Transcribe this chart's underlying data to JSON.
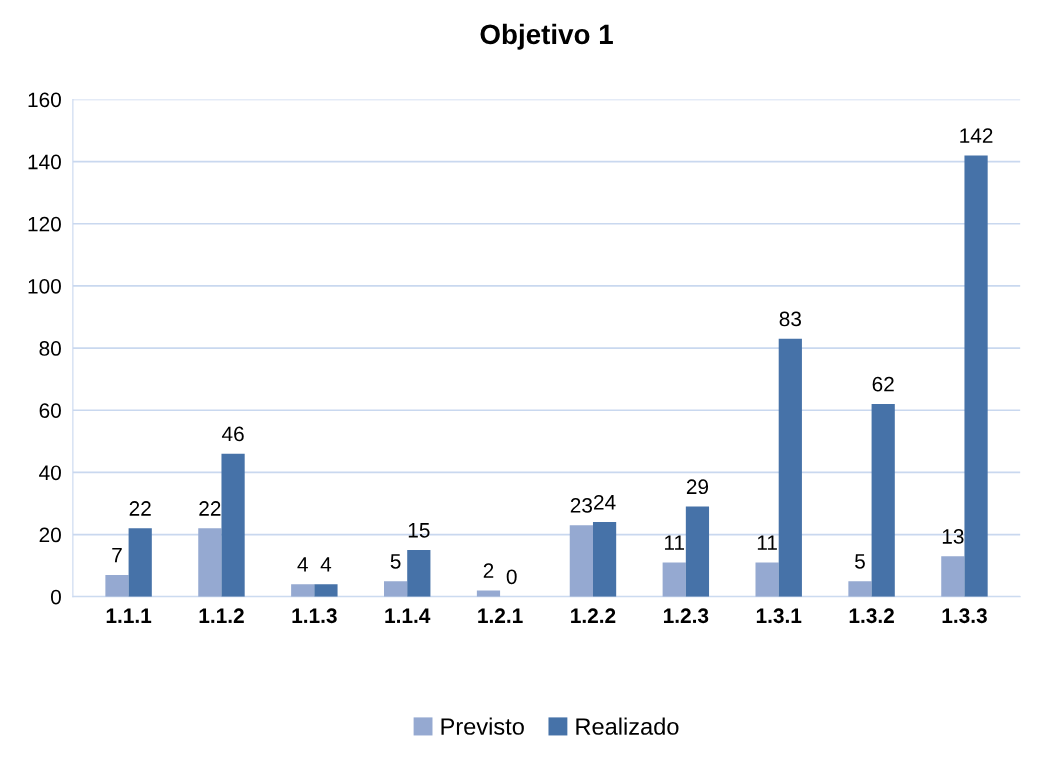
{
  "chart_data": {
    "type": "bar",
    "title": "Objetivo 1",
    "categories": [
      "1.1.1",
      "1.1.2",
      "1.1.3",
      "1.1.4",
      "1.2.1",
      "1.2.2",
      "1.2.3",
      "1.3.1",
      "1.3.2",
      "1.3.3"
    ],
    "series": [
      {
        "name": "Previsto",
        "color": "#95a9d1",
        "values": [
          7,
          22,
          4,
          5,
          2,
          23,
          11,
          11,
          5,
          13
        ]
      },
      {
        "name": "Realizado",
        "color": "#4672a8",
        "values": [
          22,
          46,
          4,
          15,
          0,
          24,
          29,
          83,
          62,
          142
        ]
      }
    ],
    "ylim": [
      0,
      160
    ],
    "yticks": [
      0,
      20,
      40,
      60,
      80,
      100,
      120,
      140,
      160
    ],
    "grid": "y",
    "legend": "bottom",
    "data_labels": true
  }
}
